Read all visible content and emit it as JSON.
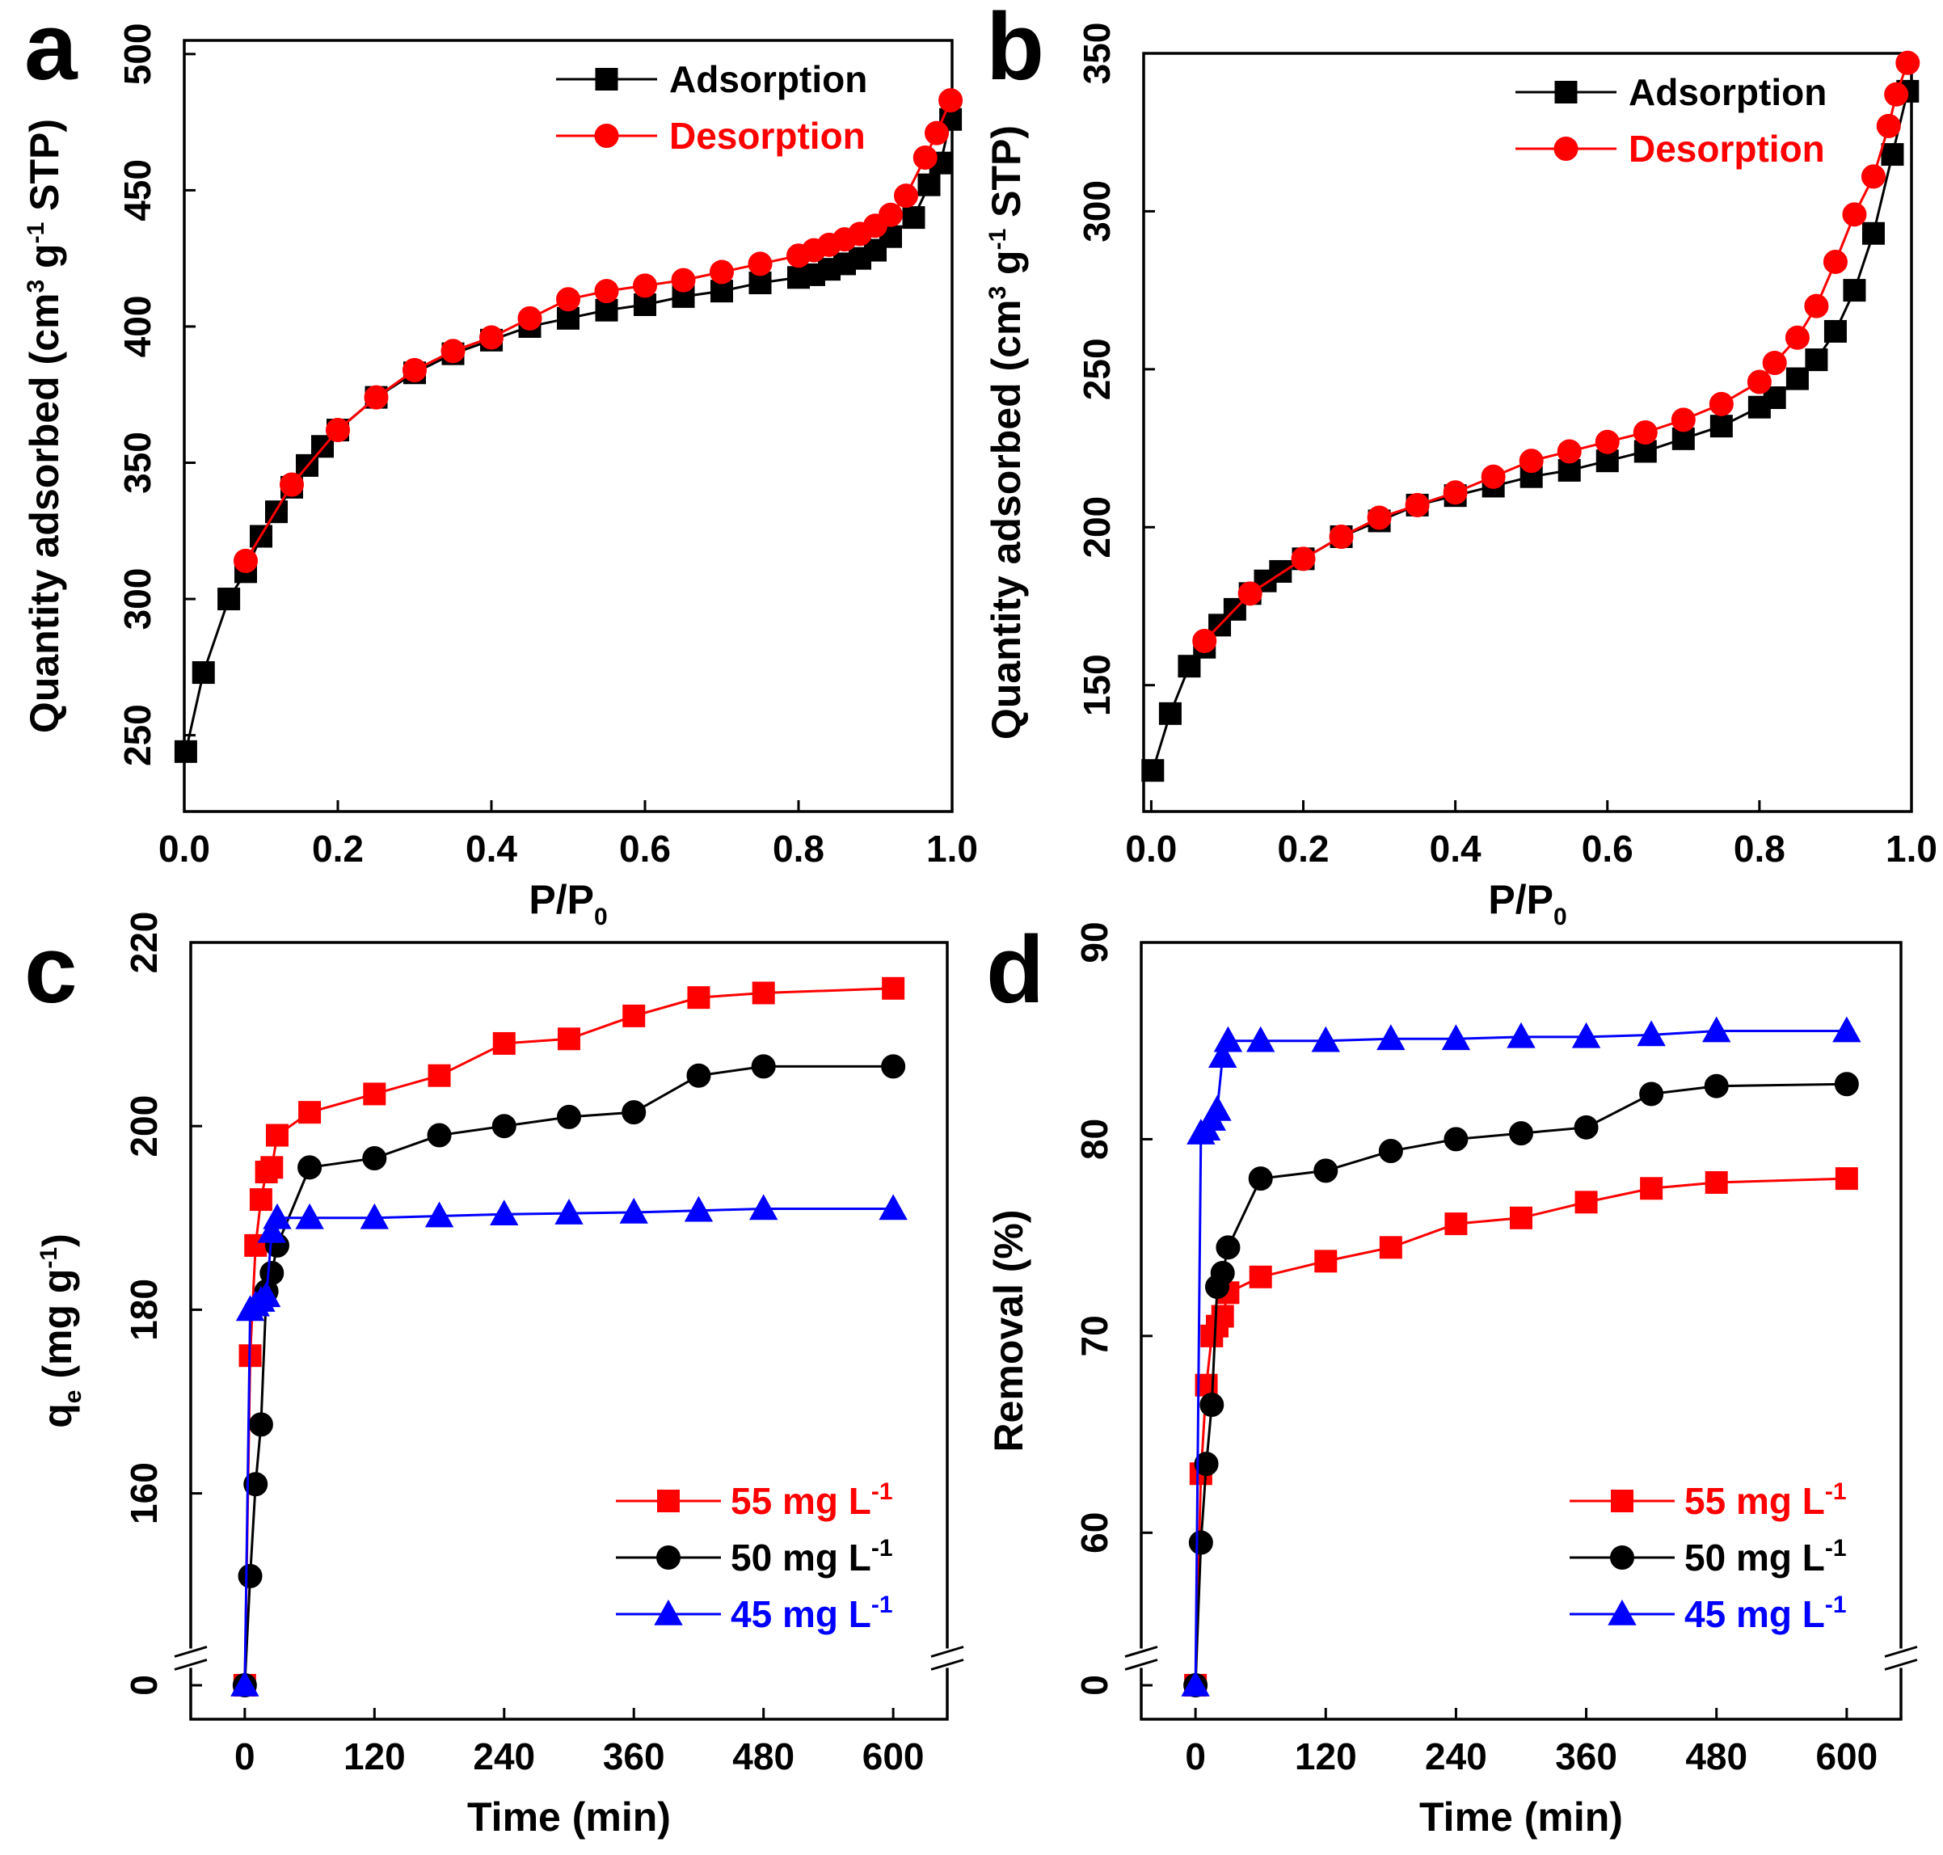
{
  "chart_data": [
    {
      "id": "a",
      "type": "line",
      "panel_label": "a",
      "xlabel": "P/P",
      "xlabel_sub": "0",
      "ylabel_parts": [
        "Quantity adsorbed (cm",
        "3",
        " g",
        "-1",
        " STP)"
      ],
      "xlim": [
        0,
        1.0
      ],
      "ylim": [
        222,
        505
      ],
      "xticks": [
        0.0,
        0.2,
        0.4,
        0.6,
        0.8,
        1.0
      ],
      "xtick_labels": [
        "0.0",
        "0.2",
        "0.4",
        "0.6",
        "0.8",
        "1.0"
      ],
      "yticks": [
        250,
        300,
        350,
        400,
        450,
        500
      ],
      "ytick_labels": [
        "250",
        "300",
        "350",
        "400",
        "450",
        "500"
      ],
      "legend": {
        "position": "top-right",
        "entries": [
          "Adsorption",
          "Desorption"
        ]
      },
      "series": [
        {
          "name": "Adsorption",
          "color": "#000000",
          "marker": "square",
          "x": [
            0.002,
            0.025,
            0.058,
            0.08,
            0.1,
            0.12,
            0.14,
            0.16,
            0.18,
            0.2,
            0.25,
            0.3,
            0.35,
            0.4,
            0.45,
            0.5,
            0.55,
            0.6,
            0.65,
            0.7,
            0.75,
            0.8,
            0.82,
            0.84,
            0.86,
            0.88,
            0.9,
            0.92,
            0.95,
            0.97,
            0.985,
            0.998
          ],
          "y": [
            244,
            273,
            300,
            310,
            323,
            332,
            341,
            349,
            356,
            362,
            374,
            383,
            390,
            395,
            400,
            403,
            406,
            408,
            411,
            413,
            416,
            418,
            419,
            421,
            423,
            425,
            428,
            433,
            440,
            452,
            460,
            476
          ]
        },
        {
          "name": "Desorption",
          "color": "#ff0000",
          "marker": "circle",
          "x": [
            0.998,
            0.98,
            0.965,
            0.94,
            0.92,
            0.9,
            0.88,
            0.86,
            0.84,
            0.82,
            0.8,
            0.75,
            0.7,
            0.65,
            0.6,
            0.55,
            0.5,
            0.45,
            0.4,
            0.35,
            0.3,
            0.25,
            0.2,
            0.14,
            0.08
          ],
          "y": [
            483,
            471,
            462,
            448,
            441,
            437,
            434,
            432,
            430,
            428,
            426,
            423,
            420,
            417,
            415,
            413,
            410,
            403,
            396,
            391,
            384,
            374,
            362,
            342,
            314
          ]
        }
      ]
    },
    {
      "id": "b",
      "type": "line",
      "panel_label": "b",
      "xlabel": "P/P",
      "xlabel_sub": "0",
      "ylabel_parts": [
        "Quantity adsorbed (cm",
        "3",
        " g",
        "-1",
        " STP)"
      ],
      "xlim": [
        -0.01,
        1.0
      ],
      "ylim": [
        110,
        350
      ],
      "xticks": [
        0.0,
        0.2,
        0.4,
        0.6,
        0.8,
        1.0
      ],
      "xtick_labels": [
        "0.0",
        "0.2",
        "0.4",
        "0.6",
        "0.8",
        "1.0"
      ],
      "yticks": [
        150,
        200,
        250,
        300,
        350
      ],
      "ytick_labels": [
        "150",
        "200",
        "250",
        "300",
        "350"
      ],
      "legend": {
        "position": "top-right",
        "entries": [
          "Adsorption",
          "Desorption"
        ]
      },
      "series": [
        {
          "name": "Adsorption",
          "color": "#000000",
          "marker": "square",
          "x": [
            0.002,
            0.025,
            0.05,
            0.07,
            0.09,
            0.11,
            0.13,
            0.15,
            0.17,
            0.2,
            0.25,
            0.3,
            0.35,
            0.4,
            0.45,
            0.5,
            0.55,
            0.6,
            0.65,
            0.7,
            0.75,
            0.8,
            0.82,
            0.85,
            0.875,
            0.9,
            0.925,
            0.95,
            0.975,
            0.995
          ],
          "y": [
            123,
            141,
            156,
            162,
            169,
            174,
            179,
            183,
            186,
            190,
            197,
            202,
            207,
            210,
            213,
            216,
            218,
            221,
            224,
            228,
            232,
            238,
            241,
            247,
            253,
            262,
            275,
            293,
            318,
            338
          ]
        },
        {
          "name": "Desorption",
          "color": "#ff0000",
          "marker": "circle",
          "x": [
            0.995,
            0.98,
            0.97,
            0.95,
            0.925,
            0.9,
            0.875,
            0.85,
            0.82,
            0.8,
            0.75,
            0.7,
            0.65,
            0.6,
            0.55,
            0.5,
            0.45,
            0.4,
            0.35,
            0.3,
            0.25,
            0.2,
            0.13,
            0.07
          ],
          "y": [
            347,
            337,
            327,
            311,
            299,
            284,
            270,
            260,
            252,
            246,
            239,
            234,
            230,
            227,
            224,
            221,
            216,
            211,
            207,
            203,
            197,
            190,
            179,
            164
          ]
        }
      ]
    },
    {
      "id": "c",
      "type": "line",
      "panel_label": "c",
      "xlabel": "Time (min)",
      "ylabel_parts": [
        "q",
        "e",
        " (mg g",
        "-1",
        ")"
      ],
      "xlim": [
        -50,
        650
      ],
      "broken_axis": {
        "low_value": 0,
        "break_label": "0",
        "main_range": [
          145,
          220
        ]
      },
      "xticks": [
        0,
        120,
        240,
        360,
        480,
        600
      ],
      "xtick_labels": [
        "0",
        "120",
        "240",
        "360",
        "480",
        "600"
      ],
      "yticks": [
        160,
        180,
        200,
        220
      ],
      "ytick_labels": [
        "160",
        "180",
        "200",
        "220"
      ],
      "legend": {
        "position": "bottom-right",
        "entries": [
          "55 mg L",
          "50 mg L",
          "45 mg L"
        ],
        "unit_superscript": "-1"
      },
      "series": [
        {
          "name": "55 mg L-1",
          "color": "#ff0000",
          "marker": "square",
          "x": [
            0,
            5,
            10,
            15,
            20,
            25,
            30,
            60,
            120,
            180,
            240,
            300,
            360,
            420,
            480,
            600
          ],
          "y": [
            0,
            175,
            187,
            192,
            195,
            195.5,
            199,
            201.5,
            203.5,
            205.5,
            209,
            209.5,
            212,
            214,
            214.5,
            215
          ]
        },
        {
          "name": "50 mg L-1",
          "color": "#000000",
          "marker": "circle",
          "x": [
            0,
            5,
            10,
            15,
            20,
            25,
            30,
            60,
            120,
            180,
            240,
            300,
            360,
            420,
            480,
            600
          ],
          "y": [
            0,
            151,
            161,
            167.5,
            182,
            184,
            187,
            195.5,
            196.5,
            199,
            200,
            201,
            201.5,
            205.5,
            206.5,
            206.5
          ]
        },
        {
          "name": "45 mg L-1",
          "color": "#0000ff",
          "marker": "triangle",
          "x": [
            0,
            5,
            10,
            15,
            20,
            25,
            30,
            60,
            120,
            180,
            240,
            300,
            360,
            420,
            480,
            600
          ],
          "y": [
            0,
            180,
            180.5,
            181,
            181.5,
            188.5,
            190,
            190,
            190,
            190.2,
            190.4,
            190.5,
            190.6,
            190.8,
            191,
            191
          ]
        }
      ]
    },
    {
      "id": "d",
      "type": "line",
      "panel_label": "d",
      "xlabel": "Time (min)",
      "ylabel_parts": [
        "Removal (%)"
      ],
      "xlim": [
        -50,
        650
      ],
      "broken_axis": {
        "low_value": 0,
        "break_label": "0",
        "main_range": [
          55,
          90
        ]
      },
      "xticks": [
        0,
        120,
        240,
        360,
        480,
        600
      ],
      "xtick_labels": [
        "0",
        "120",
        "240",
        "360",
        "480",
        "600"
      ],
      "yticks": [
        60,
        70,
        80,
        90
      ],
      "ytick_labels": [
        "60",
        "70",
        "80",
        "90"
      ],
      "legend": {
        "position": "bottom-right",
        "entries": [
          "55 mg L",
          "50 mg L",
          "45 mg L"
        ],
        "unit_superscript": "-1"
      },
      "series": [
        {
          "name": "55 mg L-1",
          "color": "#ff0000",
          "marker": "square",
          "x": [
            0,
            5,
            10,
            15,
            20,
            25,
            30,
            60,
            120,
            180,
            240,
            300,
            360,
            420,
            480,
            600
          ],
          "y": [
            0,
            63,
            67.5,
            70,
            70.5,
            71,
            72.2,
            73,
            73.8,
            74.5,
            75.7,
            76,
            76.8,
            77.5,
            77.8,
            78
          ]
        },
        {
          "name": "50 mg L-1",
          "color": "#000000",
          "marker": "circle",
          "x": [
            0,
            5,
            10,
            15,
            20,
            25,
            30,
            60,
            120,
            180,
            240,
            300,
            360,
            420,
            480,
            600
          ],
          "y": [
            0,
            59.5,
            63.5,
            66.5,
            72.5,
            73.2,
            74.5,
            78,
            78.4,
            79.4,
            80,
            80.3,
            80.6,
            82.3,
            82.7,
            82.8
          ]
        },
        {
          "name": "45 mg L-1",
          "color": "#0000ff",
          "marker": "triangle",
          "x": [
            0,
            5,
            10,
            15,
            20,
            25,
            30,
            60,
            120,
            180,
            240,
            300,
            360,
            420,
            480,
            600
          ],
          "y": [
            0,
            80.3,
            80.5,
            81,
            81.5,
            84.2,
            85,
            85,
            85,
            85.1,
            85.1,
            85.2,
            85.2,
            85.3,
            85.5,
            85.5
          ]
        }
      ]
    }
  ]
}
